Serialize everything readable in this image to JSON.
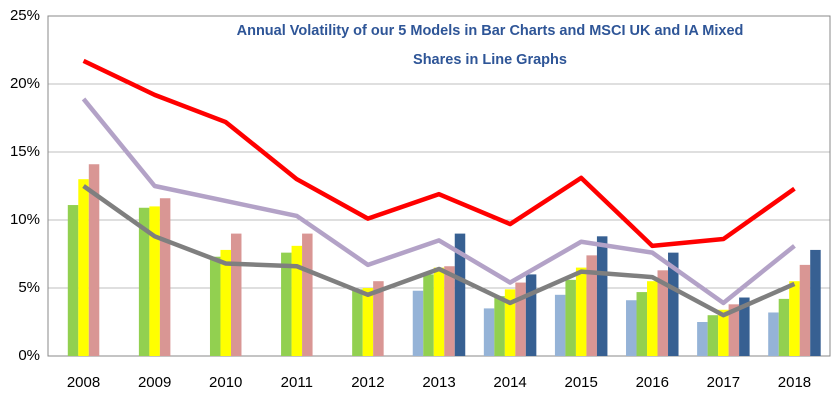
{
  "chart_data": {
    "type": "bar_line",
    "title": [
      "Annual Volatility of our 5 Models in Bar Charts and MSCI UK and IA Mixed",
      "Shares in Line Graphs"
    ],
    "categories": [
      "2008",
      "2009",
      "2010",
      "2011",
      "2012",
      "2013",
      "2014",
      "2015",
      "2016",
      "2017",
      "2018"
    ],
    "ylim": [
      0,
      25
    ],
    "yticks": [
      {
        "value": 0,
        "label": "0%"
      },
      {
        "value": 5,
        "label": "5%"
      },
      {
        "value": 10,
        "label": "10%"
      },
      {
        "value": 15,
        "label": "15%"
      },
      {
        "value": 20,
        "label": "20%"
      },
      {
        "value": 25,
        "label": "25%"
      }
    ],
    "grid": true,
    "bar_series": [
      {
        "color": "#95b3d7",
        "values": [
          null,
          null,
          null,
          null,
          null,
          4.8,
          3.5,
          4.5,
          4.1,
          2.5,
          3.2
        ]
      },
      {
        "color": "#92d050",
        "values": [
          11.1,
          10.9,
          7.3,
          7.6,
          4.9,
          6.0,
          4.4,
          5.6,
          4.7,
          3.0,
          4.2
        ]
      },
      {
        "color": "#ffff00",
        "values": [
          13.0,
          11.0,
          7.8,
          8.1,
          5.0,
          6.5,
          4.9,
          6.5,
          5.5,
          3.4,
          5.5
        ]
      },
      {
        "color": "#d99694",
        "values": [
          14.1,
          11.6,
          9.0,
          9.0,
          5.5,
          6.6,
          5.4,
          7.4,
          6.3,
          3.8,
          6.7
        ]
      },
      {
        "color": "#376092",
        "values": [
          null,
          null,
          null,
          null,
          null,
          9.0,
          6.0,
          8.8,
          7.6,
          4.3,
          7.8
        ]
      }
    ],
    "line_series": [
      {
        "color": "#ff0000",
        "values": [
          21.7,
          19.2,
          17.2,
          13.0,
          10.1,
          11.9,
          9.7,
          13.1,
          8.1,
          8.6,
          12.3
        ]
      },
      {
        "color": "#b3a2c7",
        "values": [
          18.9,
          12.5,
          11.4,
          10.3,
          6.7,
          8.5,
          5.4,
          8.4,
          7.6,
          3.9,
          8.1
        ]
      },
      {
        "color": "#7f7f7f",
        "values": [
          12.5,
          8.8,
          6.8,
          6.6,
          4.5,
          6.4,
          3.9,
          6.2,
          5.8,
          3.0,
          5.3
        ]
      }
    ]
  }
}
